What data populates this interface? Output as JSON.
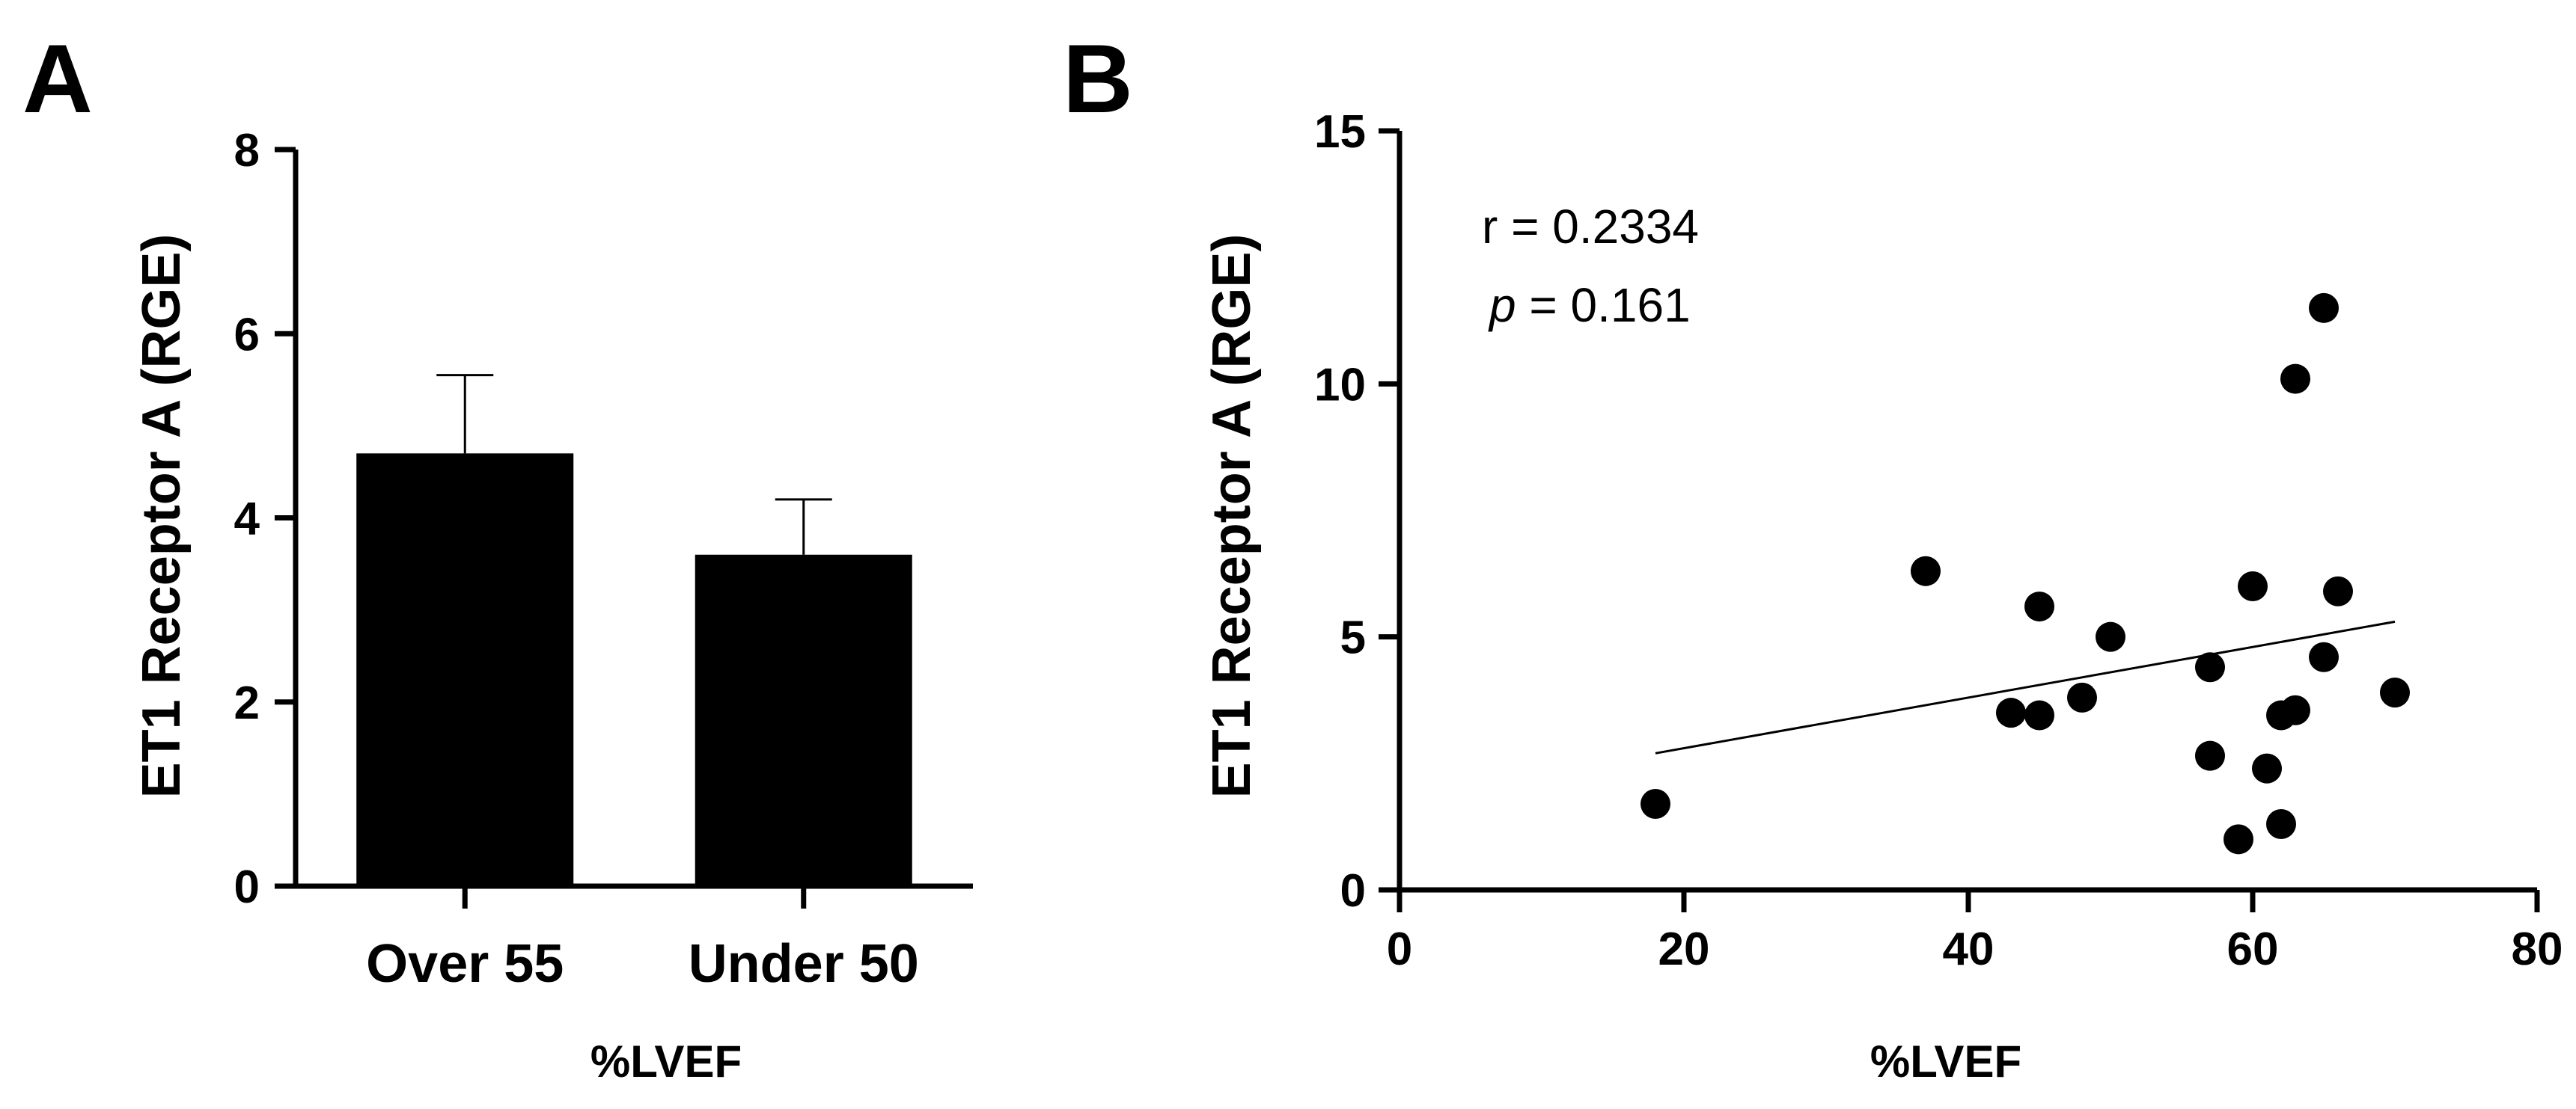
{
  "chart_data": [
    {
      "panel": "A",
      "type": "bar",
      "categories": [
        "Over 55",
        "Under 50"
      ],
      "values": [
        4.7,
        3.6
      ],
      "error_upper": [
        0.85,
        0.6
      ],
      "ylabel": "ET1 Receptor A (RGE)",
      "xlabel": "%LVEF",
      "ylim": [
        0,
        8
      ],
      "yticks": [
        0,
        2,
        4,
        6,
        8
      ],
      "bar_color": "#000000"
    },
    {
      "panel": "B",
      "type": "scatter",
      "points": [
        {
          "x": 18,
          "y": 1.7
        },
        {
          "x": 37,
          "y": 6.3
        },
        {
          "x": 43,
          "y": 3.5
        },
        {
          "x": 45,
          "y": 3.45
        },
        {
          "x": 45,
          "y": 5.6
        },
        {
          "x": 48,
          "y": 3.8
        },
        {
          "x": 50,
          "y": 5.0
        },
        {
          "x": 57,
          "y": 4.4
        },
        {
          "x": 57,
          "y": 2.65
        },
        {
          "x": 59,
          "y": 1.0
        },
        {
          "x": 60,
          "y": 6.0
        },
        {
          "x": 61,
          "y": 2.4
        },
        {
          "x": 62,
          "y": 1.3
        },
        {
          "x": 62,
          "y": 3.45
        },
        {
          "x": 63,
          "y": 3.55
        },
        {
          "x": 63,
          "y": 10.1
        },
        {
          "x": 65,
          "y": 11.5
        },
        {
          "x": 65,
          "y": 4.6
        },
        {
          "x": 66,
          "y": 5.9
        },
        {
          "x": 70,
          "y": 3.9
        }
      ],
      "trendline": {
        "x": [
          18,
          70
        ],
        "y": [
          2.7,
          5.3
        ]
      },
      "annotation_r": "r = 0.2334",
      "annotation_p_symbol": "p",
      "annotation_p_value": " = 0.161",
      "ylabel": "ET1 Receptor A (RGE)",
      "xlabel": "%LVEF",
      "xlim": [
        0,
        80
      ],
      "ylim": [
        0,
        15
      ],
      "xticks": [
        0,
        20,
        40,
        60,
        80
      ],
      "yticks": [
        0,
        5,
        10,
        15
      ],
      "point_color": "#000000"
    }
  ]
}
